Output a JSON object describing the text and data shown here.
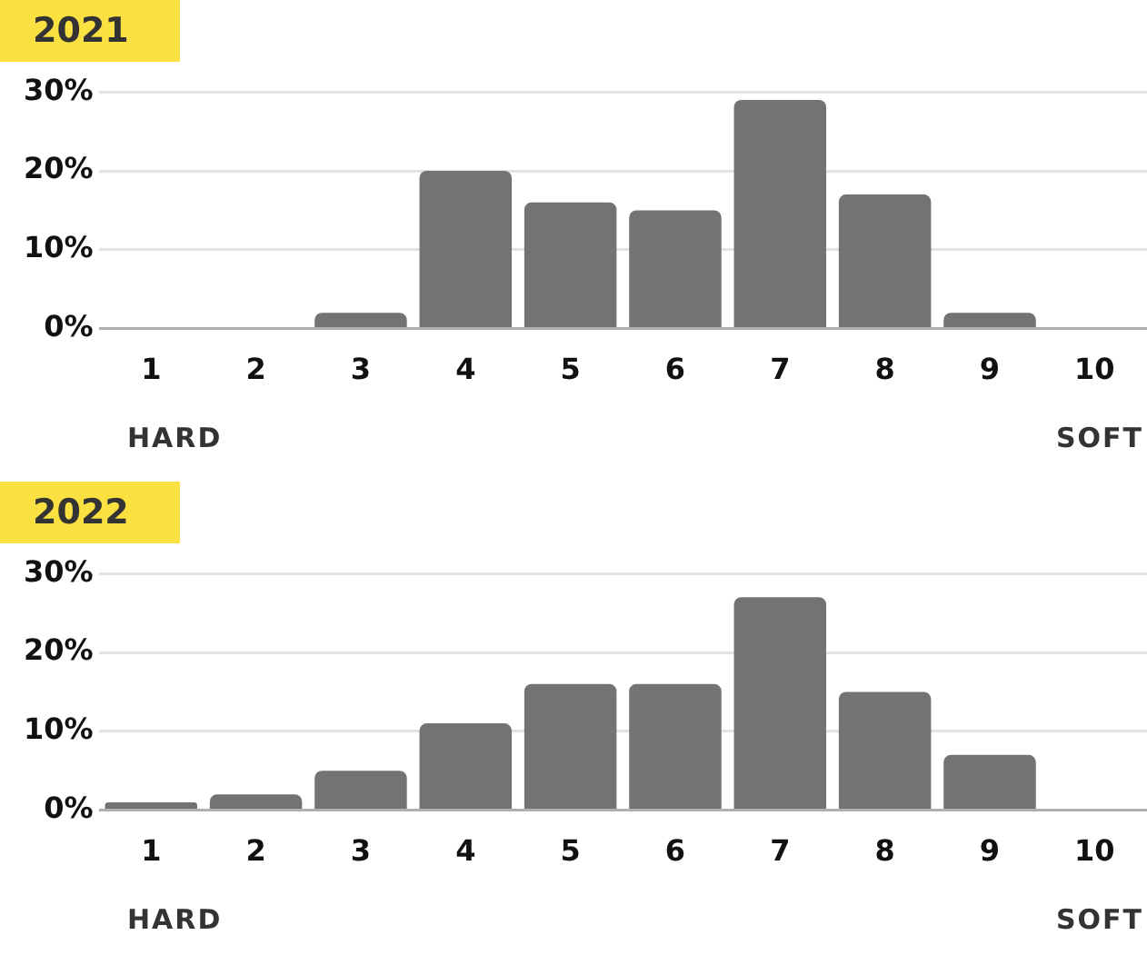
{
  "chart_data": [
    {
      "type": "bar",
      "title": "2021",
      "categories": [
        "1",
        "2",
        "3",
        "4",
        "5",
        "6",
        "7",
        "8",
        "9",
        "10"
      ],
      "values": [
        0,
        0,
        2,
        20,
        16,
        15,
        29,
        17,
        2,
        0
      ],
      "color": "#737373",
      "ylim": [
        0,
        30
      ],
      "yticks": [
        {
          "value": 0,
          "label": "0%"
        },
        {
          "value": 10,
          "label": "10%"
        },
        {
          "value": 20,
          "label": "20%"
        },
        {
          "value": 30,
          "label": "30%"
        }
      ],
      "grid": "y",
      "annotations": [
        "HARD",
        "SOFT"
      ]
    },
    {
      "type": "bar",
      "title": "2022",
      "categories": [
        "1",
        "2",
        "3",
        "4",
        "5",
        "6",
        "7",
        "8",
        "9",
        "10"
      ],
      "values": [
        1,
        2,
        5,
        11,
        16,
        16,
        27,
        15,
        7,
        0
      ],
      "color": "#737373",
      "ylim": [
        0,
        30
      ],
      "yticks": [
        {
          "value": 0,
          "label": "0%"
        },
        {
          "value": 10,
          "label": "10%"
        },
        {
          "value": 20,
          "label": "20%"
        },
        {
          "value": 30,
          "label": "30%"
        }
      ],
      "grid": "y",
      "annotations": [
        "HARD",
        "SOFT"
      ]
    }
  ]
}
